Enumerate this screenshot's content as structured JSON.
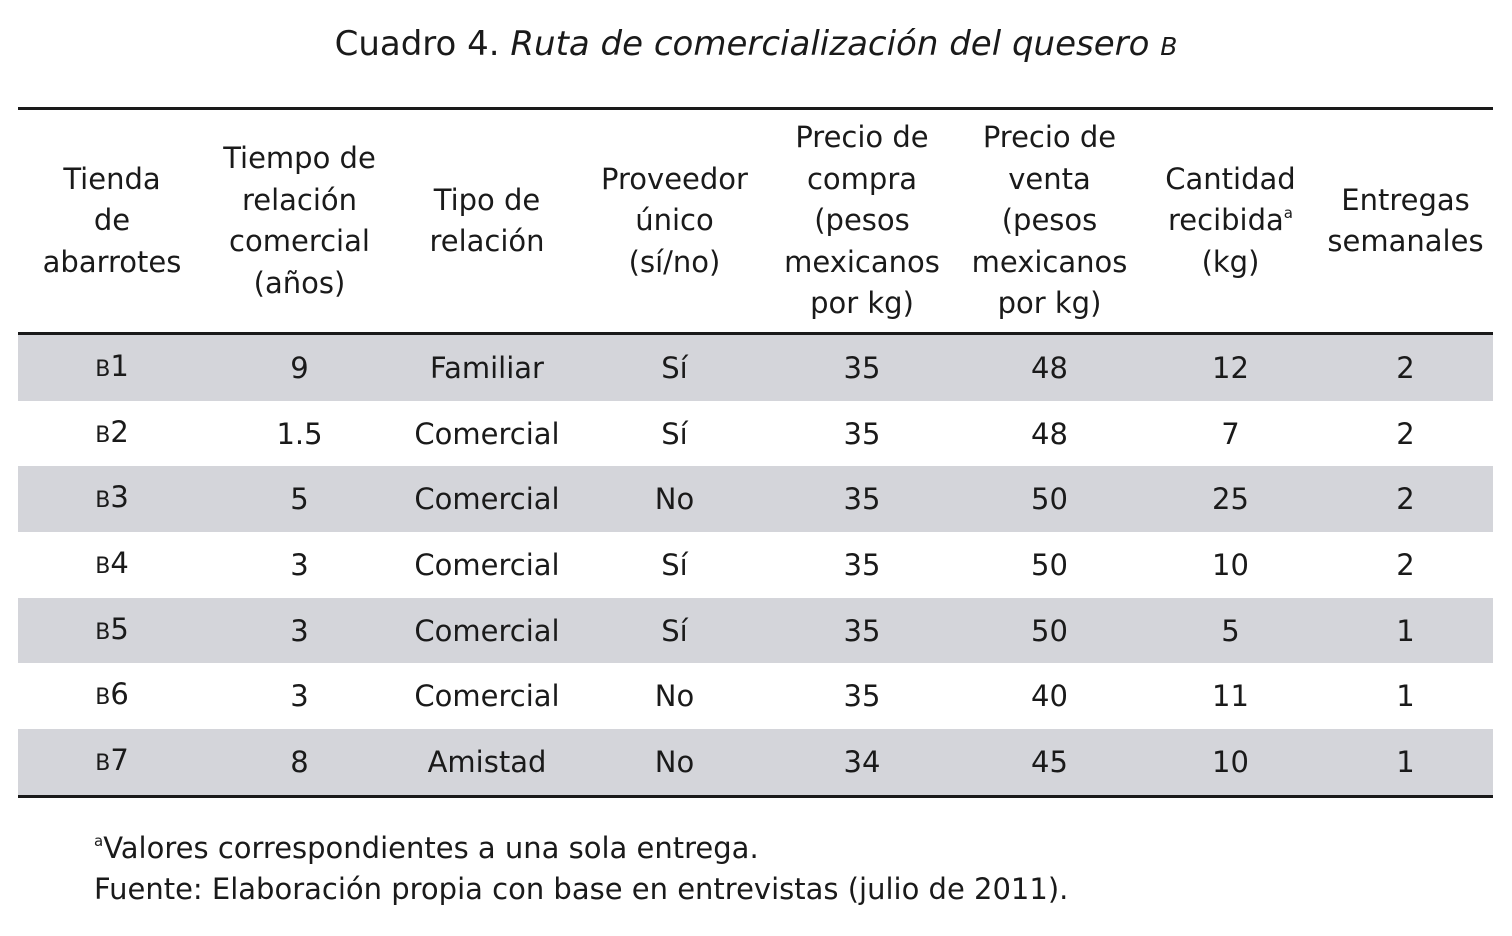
{
  "caption": {
    "label": "Cuadro 4. ",
    "title": "Ruta de comercialización del quesero ",
    "title_suffix": "B"
  },
  "table": {
    "columns": [
      {
        "lines": [
          "Tienda",
          "de",
          "abarrotes"
        ]
      },
      {
        "lines": [
          "Tiempo de",
          "relación",
          "comercial",
          "(años)"
        ]
      },
      {
        "lines": [
          "Tipo de",
          "relación"
        ]
      },
      {
        "lines": [
          "Proveedor",
          "único",
          "(sí/no)"
        ]
      },
      {
        "lines": [
          "Precio de",
          "compra",
          "(pesos",
          "mexicanos",
          "por kg)"
        ]
      },
      {
        "lines": [
          "Precio de",
          "venta",
          "(pesos",
          "mexicanos",
          "por kg)"
        ]
      },
      {
        "lines": [
          "Cantidad",
          "recibida",
          "(kg)"
        ],
        "footnote_mark": "a"
      },
      {
        "lines": [
          "Entregas",
          "semanales"
        ]
      }
    ],
    "rows": [
      {
        "store_prefix": "B",
        "store_num": "1",
        "years": "9",
        "type": "Familiar",
        "sole": "Sí",
        "buy": "35",
        "sell": "48",
        "qty": "12",
        "deliveries": "2"
      },
      {
        "store_prefix": "B",
        "store_num": "2",
        "years": "1.5",
        "type": "Comercial",
        "sole": "Sí",
        "buy": "35",
        "sell": "48",
        "qty": "7",
        "deliveries": "2"
      },
      {
        "store_prefix": "B",
        "store_num": "3",
        "years": "5",
        "type": "Comercial",
        "sole": "No",
        "buy": "35",
        "sell": "50",
        "qty": "25",
        "deliveries": "2"
      },
      {
        "store_prefix": "B",
        "store_num": "4",
        "years": "3",
        "type": "Comercial",
        "sole": "Sí",
        "buy": "35",
        "sell": "50",
        "qty": "10",
        "deliveries": "2"
      },
      {
        "store_prefix": "B",
        "store_num": "5",
        "years": "3",
        "type": "Comercial",
        "sole": "Sí",
        "buy": "35",
        "sell": "50",
        "qty": "5",
        "deliveries": "1"
      },
      {
        "store_prefix": "B",
        "store_num": "6",
        "years": "3",
        "type": "Comercial",
        "sole": "No",
        "buy": "35",
        "sell": "40",
        "qty": "11",
        "deliveries": "1"
      },
      {
        "store_prefix": "B",
        "store_num": "7",
        "years": "8",
        "type": "Amistad",
        "sole": "No",
        "buy": "34",
        "sell": "45",
        "qty": "10",
        "deliveries": "1"
      }
    ]
  },
  "notes": {
    "footnote_mark": "a",
    "footnote": "Valores correspondientes a una sola entrega.",
    "source": "Fuente: Elaboración propia con base en entrevistas (julio de 2011)."
  }
}
